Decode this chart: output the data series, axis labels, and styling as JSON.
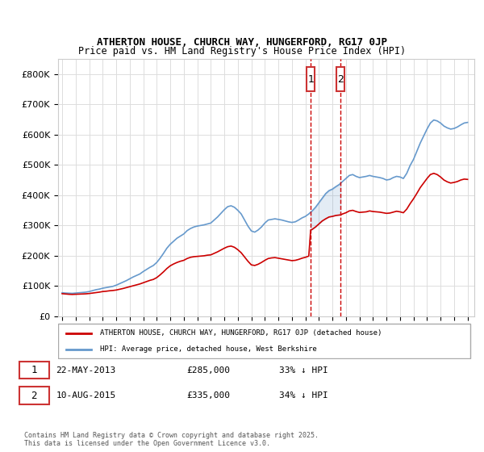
{
  "title1": "ATHERTON HOUSE, CHURCH WAY, HUNGERFORD, RG17 0JP",
  "title2": "Price paid vs. HM Land Registry's House Price Index (HPI)",
  "ylabel_ticks": [
    "£0",
    "£100K",
    "£200K",
    "£300K",
    "£400K",
    "£500K",
    "£600K",
    "£700K",
    "£800K"
  ],
  "ytick_values": [
    0,
    100000,
    200000,
    300000,
    400000,
    500000,
    600000,
    700000,
    800000
  ],
  "ylim": [
    0,
    850000
  ],
  "xlim_start": 1995,
  "xlim_end": 2025.5,
  "marker1_date": 2013.39,
  "marker2_date": 2015.61,
  "marker1_label": "1",
  "marker2_label": "2",
  "legend_line1": "ATHERTON HOUSE, CHURCH WAY, HUNGERFORD, RG17 0JP (detached house)",
  "legend_line2": "HPI: Average price, detached house, West Berkshire",
  "table_row1": [
    "1",
    "22-MAY-2013",
    "£285,000",
    "33% ↓ HPI"
  ],
  "table_row2": [
    "2",
    "10-AUG-2015",
    "£335,000",
    "34% ↓ HPI"
  ],
  "footer": "Contains HM Land Registry data © Crown copyright and database right 2025.\nThis data is licensed under the Open Government Licence v3.0.",
  "red_color": "#cc0000",
  "blue_color": "#6699cc",
  "marker_box_color": "#cc3333",
  "grid_color": "#dddddd",
  "hpi_data": [
    [
      1995.0,
      78000
    ],
    [
      1995.25,
      77000
    ],
    [
      1995.5,
      76500
    ],
    [
      1995.75,
      76000
    ],
    [
      1996.0,
      77000
    ],
    [
      1996.25,
      78000
    ],
    [
      1996.5,
      79000
    ],
    [
      1996.75,
      80000
    ],
    [
      1997.0,
      82000
    ],
    [
      1997.25,
      85000
    ],
    [
      1997.5,
      88000
    ],
    [
      1997.75,
      90000
    ],
    [
      1998.0,
      93000
    ],
    [
      1998.25,
      95000
    ],
    [
      1998.5,
      97000
    ],
    [
      1998.75,
      99000
    ],
    [
      1999.0,
      103000
    ],
    [
      1999.25,
      108000
    ],
    [
      1999.5,
      113000
    ],
    [
      1999.75,
      118000
    ],
    [
      2000.0,
      124000
    ],
    [
      2000.25,
      130000
    ],
    [
      2000.5,
      135000
    ],
    [
      2000.75,
      140000
    ],
    [
      2001.0,
      148000
    ],
    [
      2001.25,
      155000
    ],
    [
      2001.5,
      162000
    ],
    [
      2001.75,
      168000
    ],
    [
      2002.0,
      178000
    ],
    [
      2002.25,
      192000
    ],
    [
      2002.5,
      208000
    ],
    [
      2002.75,
      225000
    ],
    [
      2003.0,
      238000
    ],
    [
      2003.25,
      248000
    ],
    [
      2003.5,
      258000
    ],
    [
      2003.75,
      265000
    ],
    [
      2004.0,
      272000
    ],
    [
      2004.25,
      283000
    ],
    [
      2004.5,
      290000
    ],
    [
      2004.75,
      295000
    ],
    [
      2005.0,
      298000
    ],
    [
      2005.25,
      300000
    ],
    [
      2005.5,
      302000
    ],
    [
      2005.75,
      305000
    ],
    [
      2006.0,
      308000
    ],
    [
      2006.25,
      318000
    ],
    [
      2006.5,
      328000
    ],
    [
      2006.75,
      340000
    ],
    [
      2007.0,
      352000
    ],
    [
      2007.25,
      362000
    ],
    [
      2007.5,
      365000
    ],
    [
      2007.75,
      360000
    ],
    [
      2008.0,
      350000
    ],
    [
      2008.25,
      338000
    ],
    [
      2008.5,
      318000
    ],
    [
      2008.75,
      298000
    ],
    [
      2009.0,
      282000
    ],
    [
      2009.25,
      278000
    ],
    [
      2009.5,
      285000
    ],
    [
      2009.75,
      295000
    ],
    [
      2010.0,
      308000
    ],
    [
      2010.25,
      318000
    ],
    [
      2010.5,
      320000
    ],
    [
      2010.75,
      322000
    ],
    [
      2011.0,
      320000
    ],
    [
      2011.25,
      318000
    ],
    [
      2011.5,
      315000
    ],
    [
      2011.75,
      312000
    ],
    [
      2012.0,
      310000
    ],
    [
      2012.25,
      312000
    ],
    [
      2012.5,
      318000
    ],
    [
      2012.75,
      325000
    ],
    [
      2013.0,
      330000
    ],
    [
      2013.25,
      338000
    ],
    [
      2013.5,
      348000
    ],
    [
      2013.75,
      360000
    ],
    [
      2014.0,
      375000
    ],
    [
      2014.25,
      390000
    ],
    [
      2014.5,
      405000
    ],
    [
      2014.75,
      415000
    ],
    [
      2015.0,
      420000
    ],
    [
      2015.25,
      428000
    ],
    [
      2015.5,
      435000
    ],
    [
      2015.75,
      445000
    ],
    [
      2016.0,
      455000
    ],
    [
      2016.25,
      465000
    ],
    [
      2016.5,
      468000
    ],
    [
      2016.75,
      462000
    ],
    [
      2017.0,
      458000
    ],
    [
      2017.25,
      460000
    ],
    [
      2017.5,
      462000
    ],
    [
      2017.75,
      465000
    ],
    [
      2018.0,
      462000
    ],
    [
      2018.25,
      460000
    ],
    [
      2018.5,
      458000
    ],
    [
      2018.75,
      455000
    ],
    [
      2019.0,
      450000
    ],
    [
      2019.25,
      452000
    ],
    [
      2019.5,
      458000
    ],
    [
      2019.75,
      462000
    ],
    [
      2020.0,
      460000
    ],
    [
      2020.25,
      455000
    ],
    [
      2020.5,
      472000
    ],
    [
      2020.75,
      498000
    ],
    [
      2021.0,
      518000
    ],
    [
      2021.25,
      545000
    ],
    [
      2021.5,
      572000
    ],
    [
      2021.75,
      595000
    ],
    [
      2022.0,
      618000
    ],
    [
      2022.25,
      638000
    ],
    [
      2022.5,
      648000
    ],
    [
      2022.75,
      645000
    ],
    [
      2023.0,
      638000
    ],
    [
      2023.25,
      628000
    ],
    [
      2023.5,
      622000
    ],
    [
      2023.75,
      618000
    ],
    [
      2024.0,
      620000
    ],
    [
      2024.25,
      625000
    ],
    [
      2024.5,
      632000
    ],
    [
      2024.75,
      638000
    ],
    [
      2025.0,
      640000
    ]
  ],
  "price_data": [
    [
      1995.0,
      75000
    ],
    [
      1995.25,
      74000
    ],
    [
      1995.5,
      73000
    ],
    [
      1995.75,
      72500
    ],
    [
      1996.0,
      73000
    ],
    [
      1996.25,
      73500
    ],
    [
      1996.5,
      74000
    ],
    [
      1996.75,
      74500
    ],
    [
      1997.0,
      75500
    ],
    [
      1997.25,
      77000
    ],
    [
      1997.5,
      78500
    ],
    [
      1997.75,
      80000
    ],
    [
      1998.0,
      82000
    ],
    [
      1998.25,
      83000
    ],
    [
      1998.5,
      84500
    ],
    [
      1998.75,
      85500
    ],
    [
      1999.0,
      87000
    ],
    [
      1999.25,
      89500
    ],
    [
      1999.5,
      92000
    ],
    [
      1999.75,
      95000
    ],
    [
      2000.0,
      98000
    ],
    [
      2000.25,
      101000
    ],
    [
      2000.5,
      104000
    ],
    [
      2000.75,
      107000
    ],
    [
      2001.0,
      111000
    ],
    [
      2001.25,
      115000
    ],
    [
      2001.5,
      119000
    ],
    [
      2001.75,
      122000
    ],
    [
      2002.0,
      128000
    ],
    [
      2002.25,
      137000
    ],
    [
      2002.5,
      147000
    ],
    [
      2002.75,
      158000
    ],
    [
      2003.0,
      167000
    ],
    [
      2003.25,
      173000
    ],
    [
      2003.5,
      178000
    ],
    [
      2003.75,
      182000
    ],
    [
      2004.0,
      185000
    ],
    [
      2004.25,
      191000
    ],
    [
      2004.5,
      195000
    ],
    [
      2004.75,
      197000
    ],
    [
      2005.0,
      198000
    ],
    [
      2005.25,
      199000
    ],
    [
      2005.5,
      200000
    ],
    [
      2005.75,
      202000
    ],
    [
      2006.0,
      203000
    ],
    [
      2006.25,
      208000
    ],
    [
      2006.5,
      213000
    ],
    [
      2006.75,
      219000
    ],
    [
      2007.0,
      225000
    ],
    [
      2007.25,
      230000
    ],
    [
      2007.5,
      232000
    ],
    [
      2007.75,
      228000
    ],
    [
      2008.0,
      220000
    ],
    [
      2008.25,
      210000
    ],
    [
      2008.5,
      196000
    ],
    [
      2008.75,
      182000
    ],
    [
      2009.0,
      170000
    ],
    [
      2009.25,
      168000
    ],
    [
      2009.5,
      172000
    ],
    [
      2009.75,
      178000
    ],
    [
      2010.0,
      185000
    ],
    [
      2010.25,
      191000
    ],
    [
      2010.5,
      193000
    ],
    [
      2010.75,
      194000
    ],
    [
      2011.0,
      192000
    ],
    [
      2011.25,
      190000
    ],
    [
      2011.5,
      188000
    ],
    [
      2011.75,
      186000
    ],
    [
      2012.0,
      184000
    ],
    [
      2012.25,
      185000
    ],
    [
      2012.5,
      188000
    ],
    [
      2012.75,
      192000
    ],
    [
      2013.0,
      195000
    ],
    [
      2013.25,
      199000
    ],
    [
      2013.39,
      285000
    ],
    [
      2013.5,
      287000
    ],
    [
      2013.75,
      295000
    ],
    [
      2014.0,
      305000
    ],
    [
      2014.25,
      315000
    ],
    [
      2014.5,
      322000
    ],
    [
      2014.75,
      328000
    ],
    [
      2015.0,
      330000
    ],
    [
      2015.25,
      333000
    ],
    [
      2015.61,
      335000
    ],
    [
      2015.75,
      338000
    ],
    [
      2016.0,
      342000
    ],
    [
      2016.25,
      348000
    ],
    [
      2016.5,
      350000
    ],
    [
      2016.75,
      346000
    ],
    [
      2017.0,
      343000
    ],
    [
      2017.25,
      344000
    ],
    [
      2017.5,
      345000
    ],
    [
      2017.75,
      348000
    ],
    [
      2018.0,
      346000
    ],
    [
      2018.25,
      345000
    ],
    [
      2018.5,
      344000
    ],
    [
      2018.75,
      342000
    ],
    [
      2019.0,
      340000
    ],
    [
      2019.25,
      341000
    ],
    [
      2019.5,
      344000
    ],
    [
      2019.75,
      347000
    ],
    [
      2020.0,
      345000
    ],
    [
      2020.25,
      342000
    ],
    [
      2020.5,
      354000
    ],
    [
      2020.75,
      372000
    ],
    [
      2021.0,
      388000
    ],
    [
      2021.25,
      406000
    ],
    [
      2021.5,
      425000
    ],
    [
      2021.75,
      440000
    ],
    [
      2022.0,
      455000
    ],
    [
      2022.25,
      468000
    ],
    [
      2022.5,
      472000
    ],
    [
      2022.75,
      468000
    ],
    [
      2023.0,
      460000
    ],
    [
      2023.25,
      450000
    ],
    [
      2023.5,
      444000
    ],
    [
      2023.75,
      440000
    ],
    [
      2024.0,
      442000
    ],
    [
      2024.25,
      445000
    ],
    [
      2024.5,
      450000
    ],
    [
      2024.75,
      453000
    ],
    [
      2025.0,
      452000
    ]
  ]
}
